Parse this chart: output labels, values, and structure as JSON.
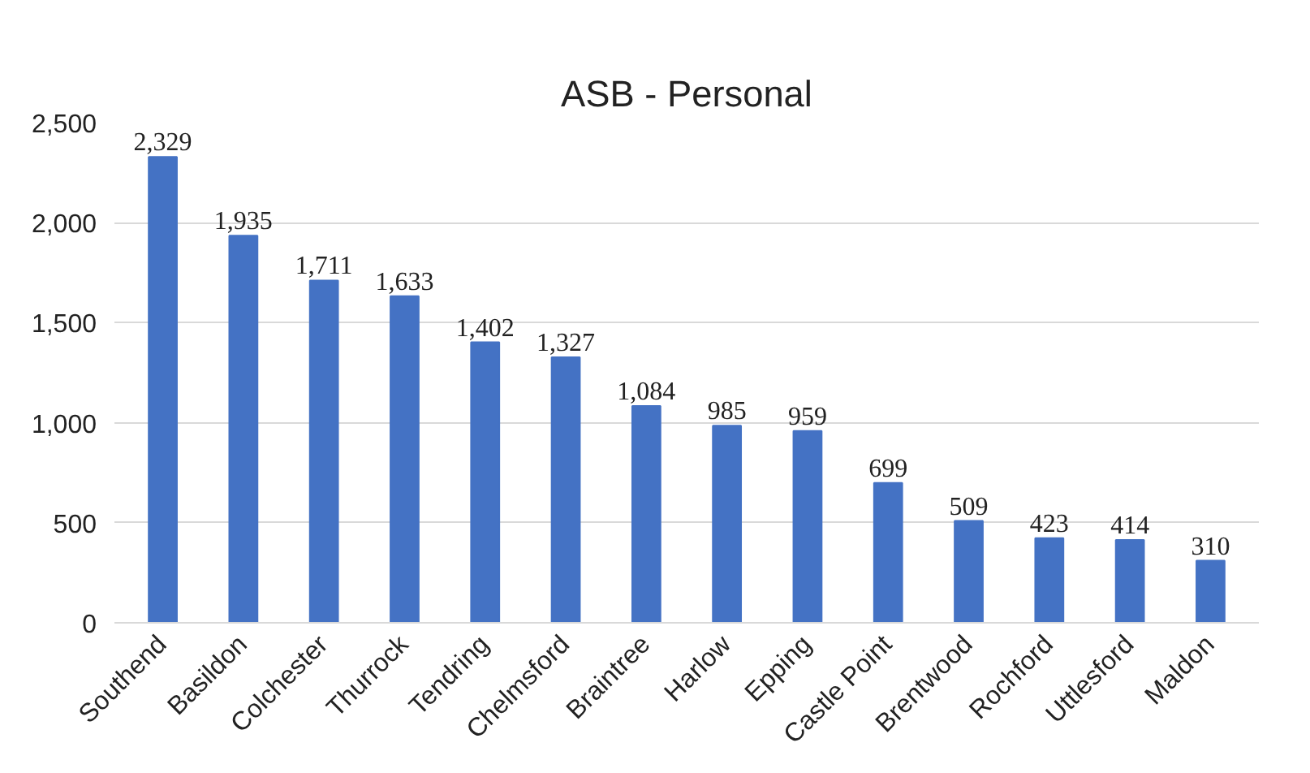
{
  "chart_data": {
    "type": "bar",
    "title": "ASB - Personal",
    "categories": [
      "Southend",
      "Basildon",
      "Colchester",
      "Thurrock",
      "Tendring",
      "Chelmsford",
      "Braintree",
      "Harlow",
      "Epping",
      "Castle Point",
      "Brentwood",
      "Rochford",
      "Uttlesford",
      "Maldon"
    ],
    "values": [
      2329,
      1935,
      1711,
      1633,
      1402,
      1327,
      1084,
      985,
      959,
      699,
      509,
      423,
      414,
      310
    ],
    "value_labels": [
      "2,329",
      "1,935",
      "1,711",
      "1,633",
      "1,402",
      "1,327",
      "1,084",
      "985",
      "959",
      "699",
      "509",
      "423",
      "414",
      "310"
    ],
    "color": "#4472c4",
    "ylim": [
      0,
      2500
    ],
    "yticks": [
      {
        "value": 0,
        "label": "0"
      },
      {
        "value": 500,
        "label": "500"
      },
      {
        "value": 1000,
        "label": "1,000"
      },
      {
        "value": 1500,
        "label": "1,500"
      },
      {
        "value": 2000,
        "label": "2,000"
      },
      {
        "value": 2500,
        "label": "2,500"
      }
    ],
    "grid": "y"
  }
}
